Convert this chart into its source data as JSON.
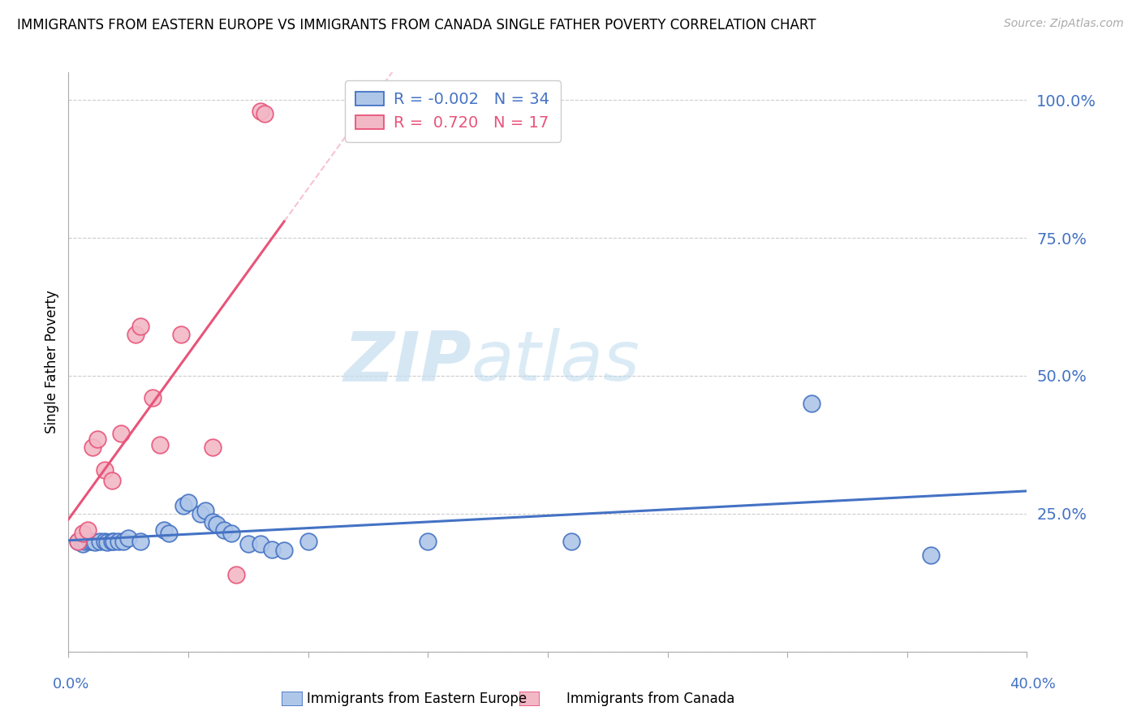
{
  "title": "IMMIGRANTS FROM EASTERN EUROPE VS IMMIGRANTS FROM CANADA SINGLE FATHER POVERTY CORRELATION CHART",
  "source": "Source: ZipAtlas.com",
  "ylabel": "Single Father Poverty",
  "watermark_zip": "ZIP",
  "watermark_atlas": "atlas",
  "blue_color": "#aec6e8",
  "pink_color": "#f2b8c6",
  "blue_line_color": "#4472c4",
  "pink_line_color": "#e8547a",
  "background": "#ffffff",
  "blue_scatter": [
    [
      0.004,
      0.2
    ],
    [
      0.006,
      0.195
    ],
    [
      0.007,
      0.2
    ],
    [
      0.009,
      0.2
    ],
    [
      0.01,
      0.2
    ],
    [
      0.011,
      0.198
    ],
    [
      0.013,
      0.2
    ],
    [
      0.015,
      0.2
    ],
    [
      0.016,
      0.198
    ],
    [
      0.018,
      0.2
    ],
    [
      0.019,
      0.2
    ],
    [
      0.021,
      0.2
    ],
    [
      0.023,
      0.2
    ],
    [
      0.025,
      0.205
    ],
    [
      0.03,
      0.2
    ],
    [
      0.04,
      0.22
    ],
    [
      0.042,
      0.215
    ],
    [
      0.048,
      0.265
    ],
    [
      0.05,
      0.27
    ],
    [
      0.055,
      0.25
    ],
    [
      0.057,
      0.255
    ],
    [
      0.06,
      0.235
    ],
    [
      0.062,
      0.23
    ],
    [
      0.065,
      0.22
    ],
    [
      0.068,
      0.215
    ],
    [
      0.075,
      0.195
    ],
    [
      0.08,
      0.195
    ],
    [
      0.085,
      0.185
    ],
    [
      0.09,
      0.183
    ],
    [
      0.1,
      0.2
    ],
    [
      0.15,
      0.2
    ],
    [
      0.21,
      0.2
    ],
    [
      0.31,
      0.45
    ],
    [
      0.36,
      0.175
    ]
  ],
  "pink_scatter": [
    [
      0.004,
      0.2
    ],
    [
      0.006,
      0.215
    ],
    [
      0.008,
      0.22
    ],
    [
      0.01,
      0.37
    ],
    [
      0.012,
      0.385
    ],
    [
      0.015,
      0.33
    ],
    [
      0.018,
      0.31
    ],
    [
      0.022,
      0.395
    ],
    [
      0.028,
      0.575
    ],
    [
      0.03,
      0.59
    ],
    [
      0.035,
      0.46
    ],
    [
      0.038,
      0.375
    ],
    [
      0.047,
      0.575
    ],
    [
      0.06,
      0.37
    ],
    [
      0.07,
      0.14
    ],
    [
      0.08,
      0.98
    ],
    [
      0.082,
      0.975
    ]
  ],
  "blue_R": -0.002,
  "blue_N": 34,
  "pink_R": 0.72,
  "pink_N": 17,
  "xlim": [
    0.0,
    0.4
  ],
  "ylim": [
    0.0,
    1.05
  ],
  "ytick_positions": [
    0.0,
    0.25,
    0.5,
    0.75,
    1.0
  ],
  "ytick_labels": [
    "",
    "25.0%",
    "50.0%",
    "75.0%",
    "100.0%"
  ],
  "xtick_positions": [
    0.0,
    0.05,
    0.1,
    0.15,
    0.2,
    0.25,
    0.3,
    0.35,
    0.4
  ],
  "grid_color": "#cccccc",
  "legend_R_blue": "R =",
  "legend_val_blue": "-0.002",
  "legend_N_blue": "N =",
  "legend_Nval_blue": "34",
  "legend_R_pink": "R =",
  "legend_val_pink": " 0.720",
  "legend_N_pink": "N =",
  "legend_Nval_pink": "17"
}
